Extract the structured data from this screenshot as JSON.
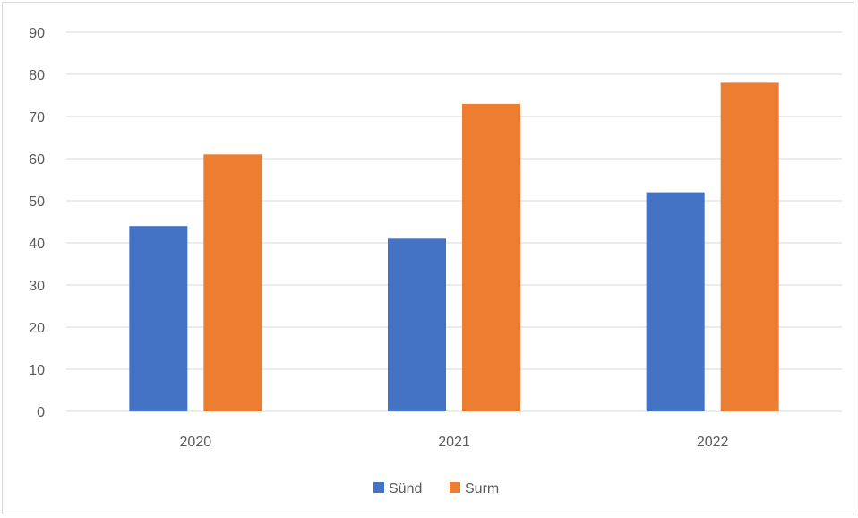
{
  "chart_data": {
    "type": "bar",
    "categories": [
      "2020",
      "2021",
      "2022"
    ],
    "series": [
      {
        "name": "Sünd",
        "values": [
          44,
          41,
          52
        ],
        "color": "#4472C4"
      },
      {
        "name": "Surm",
        "values": [
          61,
          73,
          78
        ],
        "color": "#ED7D31"
      }
    ],
    "title": "",
    "xlabel": "",
    "ylabel": "",
    "ylim": [
      0,
      90
    ],
    "yticks": [
      0,
      10,
      20,
      30,
      40,
      50,
      60,
      70,
      80,
      90
    ],
    "grid": true,
    "legend": "bottom",
    "gridline_color": "#d9d9d9"
  }
}
